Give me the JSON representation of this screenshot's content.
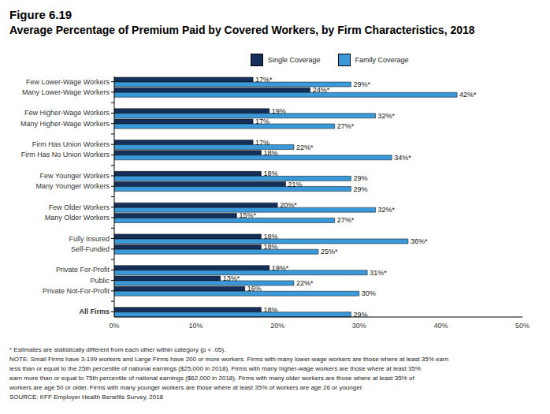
{
  "chart_data": {
    "type": "bar",
    "title": "Figure 6.19",
    "subtitle": "Average Percentage of Premium Paid by Covered Workers, by Firm Characteristics, 2018",
    "orientation": "horizontal",
    "stacked": false,
    "data_labels": true,
    "grid": false,
    "legend": "top",
    "categories": [
      "Few Lower-Wage Workers",
      "Many Lower-Wage Workers",
      null,
      "Few Higher-Wage Workers",
      "Many Higher-Wage Workers",
      null,
      "Firm Has Union Workers",
      "Firm Has No Union Workers",
      null,
      "Few Younger Workers",
      "Many Younger Workers",
      null,
      "Few Older Workers",
      "Many Older Workers",
      null,
      "Fully Insured",
      "Self-Funded",
      null,
      "Private For-Profit",
      "Public",
      "Private Not-For-Profit",
      null,
      "All Firms"
    ],
    "series": [
      {
        "name": "Single Coverage",
        "color": "#14305a",
        "values": [
          17,
          24,
          null,
          19,
          17,
          null,
          17,
          18,
          null,
          18,
          21,
          null,
          20,
          15,
          null,
          18,
          18,
          null,
          19,
          13,
          16,
          null,
          18
        ],
        "value_labels": [
          "17%*",
          "24%*",
          null,
          "19%",
          "17%",
          null,
          "17%",
          "18%",
          null,
          "18%",
          "21%",
          null,
          "20%*",
          "15%*",
          null,
          "18%",
          "18%",
          null,
          "19%*",
          "13%*",
          "16%",
          null,
          "18%"
        ]
      },
      {
        "name": "Family Coverage",
        "color": "#3a9ad9",
        "values": [
          29,
          42,
          null,
          32,
          27,
          null,
          22,
          34,
          null,
          29,
          29,
          null,
          32,
          27,
          null,
          36,
          25,
          null,
          31,
          22,
          30,
          null,
          29
        ],
        "value_labels": [
          "29%*",
          "42%*",
          null,
          "32%*",
          "27%*",
          null,
          "22%*",
          "34%*",
          null,
          "29%",
          "29%",
          null,
          "32%*",
          "27%*",
          null,
          "36%*",
          "25%*",
          null,
          "31%*",
          "22%*",
          "30%",
          null,
          "29%"
        ]
      }
    ],
    "xlim": [
      0,
      50
    ],
    "xticks": [
      {
        "value": 0,
        "label": "0%"
      },
      {
        "value": 10,
        "label": "10%"
      },
      {
        "value": 20,
        "label": "20%"
      },
      {
        "value": 30,
        "label": "30%"
      },
      {
        "value": 40,
        "label": "40%"
      },
      {
        "value": 50,
        "label": "50%"
      }
    ],
    "notes": [
      "* Estimates are statistically different from each other within category (p < .05).",
      "NOTE: Small Firms have 3-199 workers and Large Firms have 200 or more workers. Firms with many lower-wage workers are those where at least 35% earn",
      "less than or equal to the 25th percentile of national earnings ($25,000 in 2018). Firms with many higher-wage workers are those where at least 35%",
      "earn more than or equal to 75th percentile of national earnings ($62,000 in 2018). Firms with many older workers are those where at least 35% of",
      "workers are age 50 or older. Firms with many younger workers are those where at least 35% of workers are age 26 or younger.",
      "SOURCE: KFF Employer Health Benefits Survey, 2018"
    ]
  }
}
